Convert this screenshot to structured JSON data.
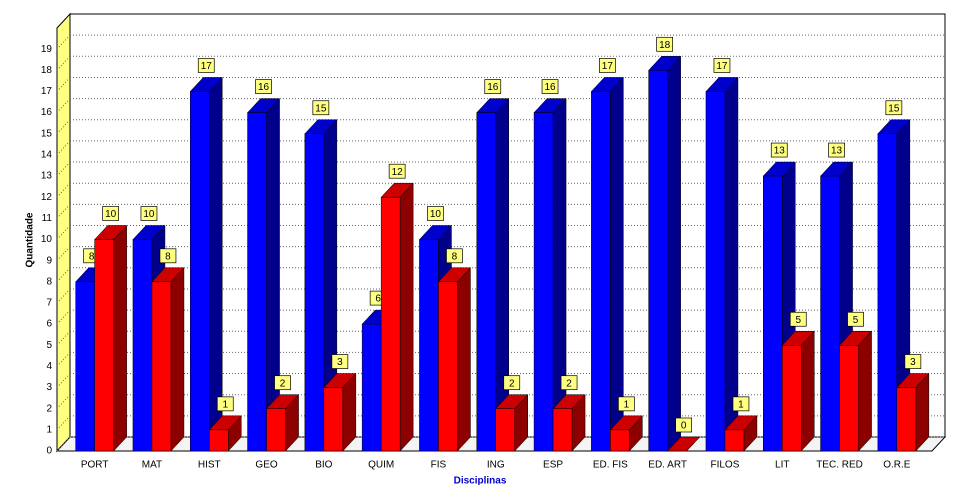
{
  "chart_data": {
    "type": "bar3d",
    "y_label": "Quantidade",
    "x_label": "Disciplinas",
    "categories": [
      "PORT",
      "MAT",
      "HIST",
      "GEO",
      "BIO",
      "QUIM",
      "FIS",
      "ING",
      "ESP",
      "ED. FIS",
      "ED. ART",
      "FILOS",
      "LIT",
      "TEC. RED",
      "O.R.E"
    ],
    "series": [
      {
        "color": "#0000ff",
        "values": [
          8,
          10,
          17,
          16,
          15,
          6,
          10,
          16,
          16,
          17,
          18,
          17,
          13,
          13,
          15
        ]
      },
      {
        "color": "#ff0000",
        "values": [
          10,
          8,
          1,
          2,
          3,
          12,
          8,
          2,
          2,
          1,
          0,
          1,
          5,
          5,
          3
        ]
      }
    ],
    "ylim": [
      0,
      20
    ],
    "yticks": [
      0,
      1,
      2,
      3,
      4,
      5,
      6,
      7,
      8,
      9,
      10,
      11,
      12,
      13,
      14,
      15,
      16,
      17,
      18,
      19
    ],
    "grid": true
  }
}
